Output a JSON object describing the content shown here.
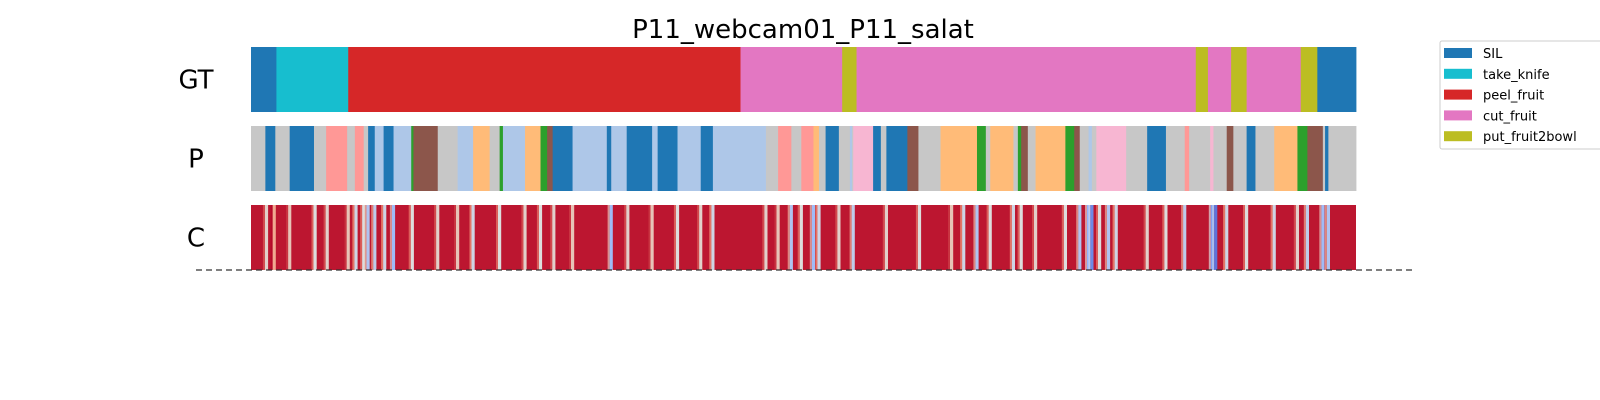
{
  "chart_data": {
    "type": "segmentation-timeline",
    "title": "P11_webcam01_P11_salat",
    "x_range": [
      0,
      1000
    ],
    "rows": [
      {
        "label": "GT",
        "segments": [
          {
            "start": 0,
            "end": 23,
            "class": "SIL"
          },
          {
            "start": 23,
            "end": 88,
            "class": "take_knife"
          },
          {
            "start": 88,
            "end": 443,
            "class": "peel_fruit"
          },
          {
            "start": 443,
            "end": 535,
            "class": "cut_fruit"
          },
          {
            "start": 535,
            "end": 548,
            "class": "put_fruit2bowl"
          },
          {
            "start": 548,
            "end": 855,
            "class": "cut_fruit"
          },
          {
            "start": 855,
            "end": 866,
            "class": "put_fruit2bowl"
          },
          {
            "start": 866,
            "end": 887,
            "class": "cut_fruit"
          },
          {
            "start": 887,
            "end": 901,
            "class": "put_fruit2bowl"
          },
          {
            "start": 901,
            "end": 950,
            "class": "cut_fruit"
          },
          {
            "start": 950,
            "end": 965,
            "class": "put_fruit2bowl"
          },
          {
            "start": 965,
            "end": 1000,
            "class": "SIL"
          }
        ]
      },
      {
        "label": "P",
        "segments": [
          {
            "start": 0,
            "end": 13,
            "class": "p_gray"
          },
          {
            "start": 13,
            "end": 22,
            "class": "SIL"
          },
          {
            "start": 22,
            "end": 35,
            "class": "p_gray"
          },
          {
            "start": 35,
            "end": 57,
            "class": "SIL"
          },
          {
            "start": 57,
            "end": 68,
            "class": "p_gray"
          },
          {
            "start": 68,
            "end": 87,
            "class": "p_pink"
          },
          {
            "start": 87,
            "end": 94,
            "class": "p_gray"
          },
          {
            "start": 94,
            "end": 102,
            "class": "p_pink"
          },
          {
            "start": 102,
            "end": 106,
            "class": "p_gray"
          },
          {
            "start": 106,
            "end": 112,
            "class": "SIL"
          },
          {
            "start": 112,
            "end": 120,
            "class": "p_lightblue"
          },
          {
            "start": 120,
            "end": 129,
            "class": "SIL"
          },
          {
            "start": 129,
            "end": 145,
            "class": "p_lightblue"
          },
          {
            "start": 145,
            "end": 147,
            "class": "p_green"
          },
          {
            "start": 147,
            "end": 169,
            "class": "p_brown"
          },
          {
            "start": 169,
            "end": 187,
            "class": "p_gray"
          },
          {
            "start": 187,
            "end": 201,
            "class": "p_lightblue"
          },
          {
            "start": 201,
            "end": 216,
            "class": "p_orange"
          },
          {
            "start": 216,
            "end": 225,
            "class": "p_gray"
          },
          {
            "start": 225,
            "end": 228,
            "class": "p_green"
          },
          {
            "start": 228,
            "end": 248,
            "class": "p_lightblue"
          },
          {
            "start": 248,
            "end": 262,
            "class": "p_orange"
          },
          {
            "start": 262,
            "end": 268,
            "class": "p_green"
          },
          {
            "start": 268,
            "end": 273,
            "class": "p_brown"
          },
          {
            "start": 273,
            "end": 291,
            "class": "SIL"
          },
          {
            "start": 291,
            "end": 322,
            "class": "p_lightblue"
          },
          {
            "start": 322,
            "end": 326,
            "class": "SIL"
          },
          {
            "start": 326,
            "end": 340,
            "class": "p_lightblue"
          },
          {
            "start": 340,
            "end": 363,
            "class": "SIL"
          },
          {
            "start": 363,
            "end": 368,
            "class": "p_lightblue"
          },
          {
            "start": 368,
            "end": 386,
            "class": "SIL"
          },
          {
            "start": 386,
            "end": 407,
            "class": "p_lightblue"
          },
          {
            "start": 407,
            "end": 418,
            "class": "SIL"
          },
          {
            "start": 418,
            "end": 466,
            "class": "p_lightblue"
          },
          {
            "start": 466,
            "end": 477,
            "class": "p_gray"
          },
          {
            "start": 477,
            "end": 489,
            "class": "p_pink"
          },
          {
            "start": 489,
            "end": 498,
            "class": "p_gray"
          },
          {
            "start": 498,
            "end": 509,
            "class": "p_pink"
          },
          {
            "start": 509,
            "end": 514,
            "class": "p_orange"
          },
          {
            "start": 514,
            "end": 520,
            "class": "p_gray"
          },
          {
            "start": 520,
            "end": 532,
            "class": "SIL"
          },
          {
            "start": 532,
            "end": 542,
            "class": "p_gray"
          },
          {
            "start": 542,
            "end": 544,
            "class": "p_lightblue"
          },
          {
            "start": 544,
            "end": 545,
            "class": "p_gray"
          },
          {
            "start": 545,
            "end": 563,
            "class": "p_lightpink"
          },
          {
            "start": 563,
            "end": 570,
            "class": "SIL"
          },
          {
            "start": 570,
            "end": 575,
            "class": "p_gray"
          },
          {
            "start": 575,
            "end": 594,
            "class": "SIL"
          },
          {
            "start": 594,
            "end": 604,
            "class": "p_brown"
          },
          {
            "start": 604,
            "end": 605,
            "class": "p_gray"
          },
          {
            "start": 605,
            "end": 624,
            "class": "p_gray"
          },
          {
            "start": 624,
            "end": 657,
            "class": "p_orange"
          },
          {
            "start": 657,
            "end": 665,
            "class": "p_green"
          },
          {
            "start": 665,
            "end": 669,
            "class": "p_gray"
          },
          {
            "start": 669,
            "end": 690,
            "class": "p_orange"
          },
          {
            "start": 690,
            "end": 694,
            "class": "p_gray"
          },
          {
            "start": 694,
            "end": 697,
            "class": "p_green"
          },
          {
            "start": 697,
            "end": 703,
            "class": "p_brown"
          },
          {
            "start": 703,
            "end": 710,
            "class": "p_gray"
          },
          {
            "start": 710,
            "end": 737,
            "class": "p_orange"
          },
          {
            "start": 737,
            "end": 745,
            "class": "p_green"
          },
          {
            "start": 745,
            "end": 750,
            "class": "p_brown"
          },
          {
            "start": 750,
            "end": 758,
            "class": "p_gray"
          },
          {
            "start": 758,
            "end": 761,
            "class": "p_lightblue"
          },
          {
            "start": 761,
            "end": 765,
            "class": "p_gray"
          },
          {
            "start": 765,
            "end": 792,
            "class": "p_lightpink"
          },
          {
            "start": 792,
            "end": 811,
            "class": "p_gray"
          },
          {
            "start": 811,
            "end": 828,
            "class": "SIL"
          },
          {
            "start": 828,
            "end": 845,
            "class": "p_gray"
          },
          {
            "start": 845,
            "end": 849,
            "class": "p_pink"
          },
          {
            "start": 849,
            "end": 868,
            "class": "p_gray"
          },
          {
            "start": 868,
            "end": 871,
            "class": "p_lightpink"
          },
          {
            "start": 871,
            "end": 883,
            "class": "p_gray"
          },
          {
            "start": 883,
            "end": 889,
            "class": "p_brown"
          },
          {
            "start": 889,
            "end": 901,
            "class": "p_gray"
          },
          {
            "start": 901,
            "end": 909,
            "class": "SIL"
          },
          {
            "start": 909,
            "end": 926,
            "class": "p_gray"
          },
          {
            "start": 926,
            "end": 947,
            "class": "p_orange"
          },
          {
            "start": 947,
            "end": 956,
            "class": "p_green"
          },
          {
            "start": 956,
            "end": 970,
            "class": "p_brown"
          },
          {
            "start": 970,
            "end": 972,
            "class": "p_gray"
          },
          {
            "start": 972,
            "end": 975,
            "class": "SIL"
          },
          {
            "start": 975,
            "end": 1000,
            "class": "p_gray"
          }
        ]
      },
      {
        "label": "C",
        "type": "confidence",
        "base_value": 0.97,
        "dips": [
          {
            "at": 14,
            "value": 0.55
          },
          {
            "at": 21,
            "value": 0.7
          },
          {
            "at": 35,
            "value": 0.6
          },
          {
            "at": 58,
            "value": 0.5
          },
          {
            "at": 69,
            "value": 0.55
          },
          {
            "at": 88,
            "value": 0.6
          },
          {
            "at": 95,
            "value": 0.45
          },
          {
            "at": 102,
            "value": 0.5
          },
          {
            "at": 106,
            "value": 0.35
          },
          {
            "at": 112,
            "value": 0.4
          },
          {
            "at": 121,
            "value": 0.45
          },
          {
            "at": 129,
            "value": 0.3
          },
          {
            "at": 146,
            "value": 0.5
          },
          {
            "at": 169,
            "value": 0.55
          },
          {
            "at": 187,
            "value": 0.6
          },
          {
            "at": 201,
            "value": 0.45
          },
          {
            "at": 225,
            "value": 0.5
          },
          {
            "at": 248,
            "value": 0.55
          },
          {
            "at": 262,
            "value": 0.5
          },
          {
            "at": 274,
            "value": 0.55
          },
          {
            "at": 291,
            "value": 0.6
          },
          {
            "at": 326,
            "value": 0.3
          },
          {
            "at": 341,
            "value": 0.55
          },
          {
            "at": 363,
            "value": 0.6
          },
          {
            "at": 386,
            "value": 0.5
          },
          {
            "at": 407,
            "value": 0.55
          },
          {
            "at": 418,
            "value": 0.45
          },
          {
            "at": 466,
            "value": 0.55
          },
          {
            "at": 477,
            "value": 0.6
          },
          {
            "at": 489,
            "value": 0.35
          },
          {
            "at": 498,
            "value": 0.5
          },
          {
            "at": 509,
            "value": 0.3
          },
          {
            "at": 514,
            "value": 0.45
          },
          {
            "at": 532,
            "value": 0.55
          },
          {
            "at": 545,
            "value": 0.4
          },
          {
            "at": 575,
            "value": 0.55
          },
          {
            "at": 605,
            "value": 0.5
          },
          {
            "at": 634,
            "value": 0.6
          },
          {
            "at": 645,
            "value": 0.45
          },
          {
            "at": 657,
            "value": 0.35
          },
          {
            "at": 669,
            "value": 0.5
          },
          {
            "at": 690,
            "value": 0.45
          },
          {
            "at": 697,
            "value": 0.5
          },
          {
            "at": 710,
            "value": 0.55
          },
          {
            "at": 737,
            "value": 0.5
          },
          {
            "at": 750,
            "value": 0.35
          },
          {
            "at": 758,
            "value": 0.25
          },
          {
            "at": 761,
            "value": 0.15
          },
          {
            "at": 768,
            "value": 0.5
          },
          {
            "at": 776,
            "value": 0.35
          },
          {
            "at": 783,
            "value": 0.45
          },
          {
            "at": 811,
            "value": 0.55
          },
          {
            "at": 828,
            "value": 0.5
          },
          {
            "at": 845,
            "value": 0.4
          },
          {
            "at": 870,
            "value": 0.2
          },
          {
            "at": 873,
            "value": 0.1
          },
          {
            "at": 883,
            "value": 0.45
          },
          {
            "at": 901,
            "value": 0.5
          },
          {
            "at": 926,
            "value": 0.45
          },
          {
            "at": 947,
            "value": 0.55
          },
          {
            "at": 956,
            "value": 0.4
          },
          {
            "at": 970,
            "value": 0.3
          },
          {
            "at": 975,
            "value": 0.35
          }
        ]
      }
    ],
    "classes": [
      {
        "name": "SIL",
        "color": "#1f77b4",
        "in_legend": true
      },
      {
        "name": "take_knife",
        "color": "#17becf",
        "in_legend": true
      },
      {
        "name": "peel_fruit",
        "color": "#d62728",
        "in_legend": true
      },
      {
        "name": "cut_fruit",
        "color": "#e377c2",
        "in_legend": true
      },
      {
        "name": "put_fruit2bowl",
        "color": "#bcbd22",
        "in_legend": true
      },
      {
        "name": "p_gray",
        "color": "#c7c7c7",
        "in_legend": false
      },
      {
        "name": "p_pink",
        "color": "#ff9896",
        "in_legend": false
      },
      {
        "name": "p_lightblue",
        "color": "#aec7e8",
        "in_legend": false
      },
      {
        "name": "p_orange",
        "color": "#ffbb78",
        "in_legend": false
      },
      {
        "name": "p_green",
        "color": "#2ca02c",
        "in_legend": false
      },
      {
        "name": "p_brown",
        "color": "#8c564b",
        "in_legend": false
      },
      {
        "name": "p_lightpink",
        "color": "#f7b6d2",
        "in_legend": false
      }
    ],
    "legend_position": "top-right, outside plot",
    "confidence_colormap": "coolwarm",
    "baseline": "dashed"
  }
}
